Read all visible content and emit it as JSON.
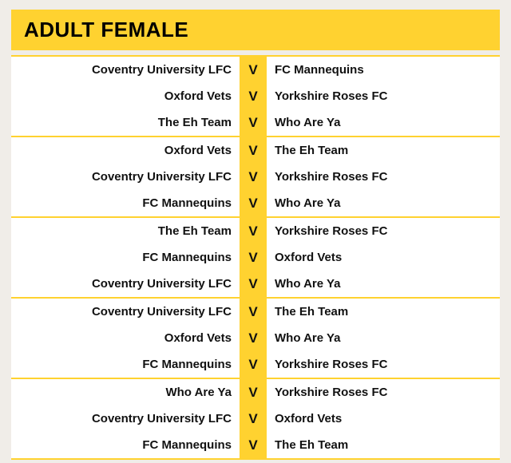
{
  "header": {
    "title": "ADULT FEMALE"
  },
  "vs_label": "V",
  "colors": {
    "accent": "#ffd230",
    "background": "#f0ede8",
    "panel": "#ffffff",
    "text": "#111111"
  },
  "fixtures": {
    "groups": [
      {
        "matches": [
          {
            "home": "Coventry University LFC",
            "away": "FC Mannequins"
          },
          {
            "home": "Oxford Vets",
            "away": "Yorkshire Roses FC"
          },
          {
            "home": "The Eh Team",
            "away": "Who Are Ya"
          }
        ]
      },
      {
        "matches": [
          {
            "home": "Oxford Vets",
            "away": "The Eh Team"
          },
          {
            "home": "Coventry University LFC",
            "away": "Yorkshire Roses FC"
          },
          {
            "home": "FC Mannequins",
            "away": "Who Are Ya"
          }
        ]
      },
      {
        "matches": [
          {
            "home": "The Eh Team",
            "away": "Yorkshire Roses FC"
          },
          {
            "home": "FC Mannequins",
            "away": "Oxford Vets"
          },
          {
            "home": "Coventry University LFC",
            "away": "Who Are Ya"
          }
        ]
      },
      {
        "matches": [
          {
            "home": "Coventry University LFC",
            "away": "The Eh Team"
          },
          {
            "home": "Oxford Vets",
            "away": "Who Are Ya"
          },
          {
            "home": "FC Mannequins",
            "away": "Yorkshire Roses FC"
          }
        ]
      },
      {
        "matches": [
          {
            "home": "Who Are Ya",
            "away": "Yorkshire Roses FC"
          },
          {
            "home": "Coventry University LFC",
            "away": "Oxford Vets"
          },
          {
            "home": "FC Mannequins",
            "away": "The Eh Team"
          }
        ]
      }
    ]
  }
}
